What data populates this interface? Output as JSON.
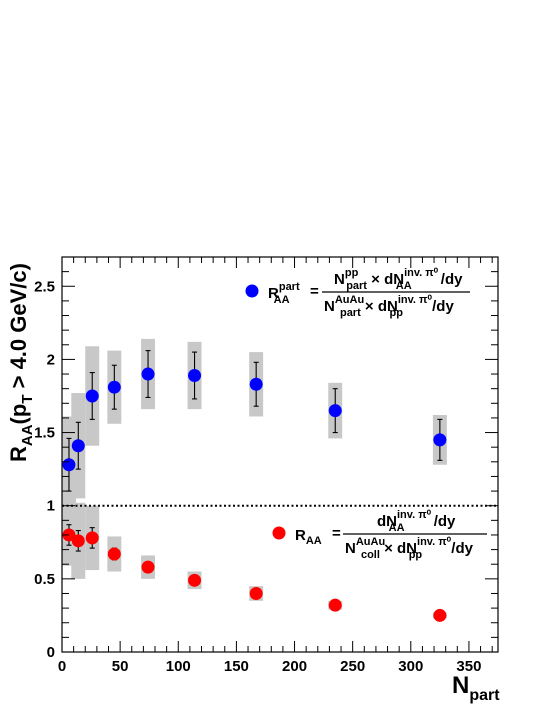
{
  "chart_data": {
    "type": "scatter",
    "title": "",
    "xlabel": {
      "main": "N",
      "sub": "part"
    },
    "ylabel": {
      "main": "R",
      "sub": "AA",
      "rest": "(p",
      "sub2": "T",
      "tail": " > 4.0 GeV/c)"
    },
    "xlim": [
      0,
      375
    ],
    "ylim": [
      0,
      2.7
    ],
    "x_ticks": [
      0,
      50,
      100,
      150,
      200,
      250,
      300,
      350
    ],
    "y_ticks": [
      0,
      0.5,
      1,
      1.5,
      2,
      2.5
    ],
    "x_tick_labels": [
      "0",
      "50",
      "100",
      "150",
      "200",
      "250",
      "300",
      "350"
    ],
    "y_tick_labels": [
      "0",
      "0.5",
      "1",
      "1.5",
      "2",
      "2.5"
    ],
    "reference_line": {
      "y": 1,
      "style": "dotted"
    },
    "grid": false,
    "series": [
      {
        "color": "#0000ff",
        "points": [
          {
            "x": 6,
            "y": 1.28,
            "stat_err": 0.18,
            "sys_err": 0.33,
            "sys_halfwidth": 6
          },
          {
            "x": 14,
            "y": 1.41,
            "stat_err": 0.16,
            "sys_err": 0.36,
            "sys_halfwidth": 6
          },
          {
            "x": 26,
            "y": 1.75,
            "stat_err": 0.16,
            "sys_err": 0.34,
            "sys_halfwidth": 6
          },
          {
            "x": 45,
            "y": 1.81,
            "stat_err": 0.15,
            "sys_err": 0.25,
            "sys_halfwidth": 6
          },
          {
            "x": 74,
            "y": 1.9,
            "stat_err": 0.16,
            "sys_err": 0.24,
            "sys_halfwidth": 6
          },
          {
            "x": 114,
            "y": 1.89,
            "stat_err": 0.16,
            "sys_err": 0.23,
            "sys_halfwidth": 6
          },
          {
            "x": 167,
            "y": 1.83,
            "stat_err": 0.15,
            "sys_err": 0.22,
            "sys_halfwidth": 6
          },
          {
            "x": 235,
            "y": 1.65,
            "stat_err": 0.15,
            "sys_err": 0.19,
            "sys_halfwidth": 6
          },
          {
            "x": 325,
            "y": 1.45,
            "stat_err": 0.14,
            "sys_err": 0.17,
            "sys_halfwidth": 6
          }
        ]
      },
      {
        "color": "#ff0000",
        "points": [
          {
            "x": 6,
            "y": 0.8,
            "stat_err": 0.07,
            "sys_err": 0.21,
            "sys_halfwidth": 6
          },
          {
            "x": 14,
            "y": 0.76,
            "stat_err": 0.07,
            "sys_err": 0.26,
            "sys_halfwidth": 6
          },
          {
            "x": 26,
            "y": 0.78,
            "stat_err": 0.07,
            "sys_err": 0.22,
            "sys_halfwidth": 6
          },
          {
            "x": 45,
            "y": 0.67,
            "stat_err": 0.04,
            "sys_err": 0.12,
            "sys_halfwidth": 6
          },
          {
            "x": 74,
            "y": 0.58,
            "stat_err": 0.03,
            "sys_err": 0.08,
            "sys_halfwidth": 6
          },
          {
            "x": 114,
            "y": 0.49,
            "stat_err": 0.02,
            "sys_err": 0.06,
            "sys_halfwidth": 6
          },
          {
            "x": 167,
            "y": 0.4,
            "stat_err": 0.02,
            "sys_err": 0.05,
            "sys_halfwidth": 6
          },
          {
            "x": 235,
            "y": 0.32,
            "stat_err": 0.02,
            "sys_err": 0.03,
            "sys_halfwidth": 6
          },
          {
            "x": 325,
            "y": 0.25,
            "stat_err": 0.01,
            "sys_err": 0.02,
            "sys_halfwidth": 6
          }
        ]
      }
    ],
    "legend": [
      {
        "series_index": 0,
        "placement": "top-right",
        "symbol": {
          "main": "R",
          "sub": "AA",
          "sup": "part"
        },
        "equals": "=",
        "numerator": [
          {
            "t": "N",
            "sup": "pp",
            "sub": "part"
          },
          {
            "t": " × dN",
            "sup": "inv. π⁰",
            "sub": "AA"
          },
          {
            "t": "/dy"
          }
        ],
        "denominator": [
          {
            "t": "N",
            "sup": "AuAu",
            "sub": "part"
          },
          {
            "t": "  × dN",
            "sup": "inv. π⁰",
            "sub": "pp"
          },
          {
            "t": "/dy"
          }
        ]
      },
      {
        "series_index": 1,
        "placement": "bottom-right",
        "symbol": {
          "main": "R",
          "sub": "AA",
          "sup": ""
        },
        "equals": "=",
        "numerator": [
          {
            "t": "dN",
            "sup": "inv. π⁰",
            "sub": "AA"
          },
          {
            "t": "/dy"
          }
        ],
        "denominator": [
          {
            "t": "N",
            "sup": "AuAu",
            "sub": "coll"
          },
          {
            "t": " × dN",
            "sup": "inv. π⁰",
            "sub": "pp"
          },
          {
            "t": "/dy"
          }
        ]
      }
    ]
  },
  "colors": {
    "sys_box": "#c8c8c8",
    "axis": "#000000",
    "text": "#000000"
  }
}
